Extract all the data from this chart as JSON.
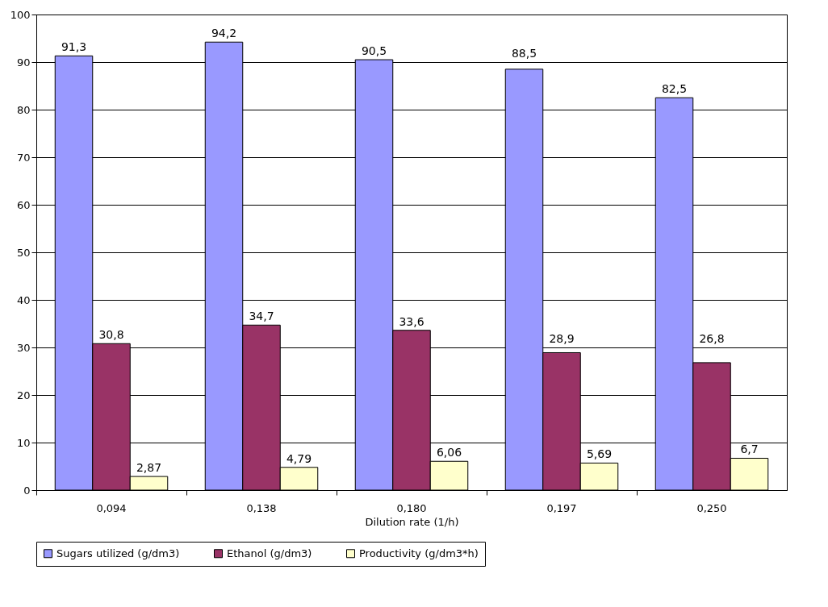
{
  "chart_data": {
    "type": "bar",
    "xlabel": "Dilution rate (1/h)",
    "categories": [
      "0,094",
      "0,138",
      "0,180",
      "0,197",
      "0,250"
    ],
    "series": [
      {
        "name": "Sugars utilized (g/dm3)",
        "color": "#9999ff",
        "values": [
          91.3,
          94.2,
          90.5,
          88.5,
          82.5
        ],
        "value_labels": [
          "91,3",
          "94,2",
          "90,5",
          "88,5",
          "82,5"
        ]
      },
      {
        "name": "Ethanol (g/dm3)",
        "color": "#993366",
        "values": [
          30.8,
          34.7,
          33.6,
          28.9,
          26.8
        ],
        "value_labels": [
          "30,8",
          "34,7",
          "33,6",
          "28,9",
          "26,8"
        ]
      },
      {
        "name": "Productivity (g/dm3*h)",
        "color": "#ffffcc",
        "values": [
          2.87,
          4.79,
          6.06,
          5.69,
          6.7
        ],
        "value_labels": [
          "2,87",
          "4,79",
          "6,06",
          "5,69",
          "6,7"
        ]
      }
    ],
    "ylim": [
      0,
      100
    ],
    "yticks": [
      0,
      10,
      20,
      30,
      40,
      50,
      60,
      70,
      80,
      90,
      100
    ],
    "grid": "y",
    "legend": "bottom"
  }
}
